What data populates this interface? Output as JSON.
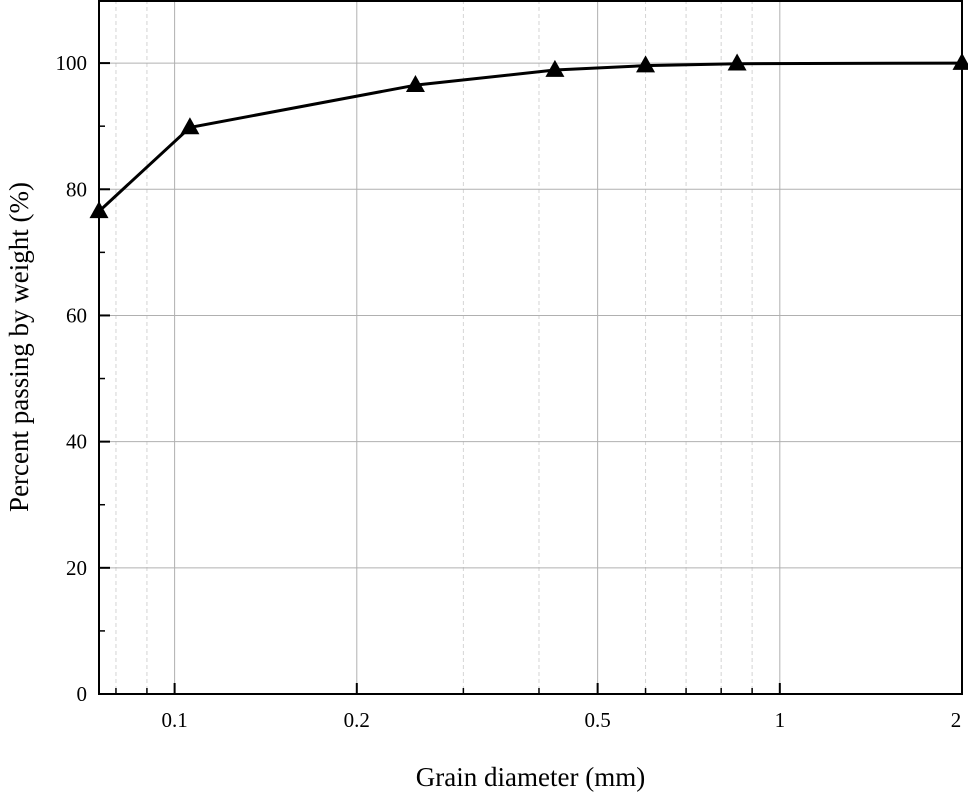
{
  "chart_data": {
    "type": "line",
    "title": "",
    "xlabel": "Grain diameter (mm)",
    "ylabel": "Percent passing by weight (%)",
    "x_scale": "log",
    "xlim": [
      0.075,
      2
    ],
    "ylim": [
      0,
      110
    ],
    "x_ticks": [
      0.1,
      0.2,
      0.5,
      1,
      2
    ],
    "x_tick_labels": [
      "0.1",
      "0.2",
      "0.5",
      "1",
      "2"
    ],
    "y_ticks": [
      0,
      20,
      40,
      60,
      80,
      100
    ],
    "y_tick_labels": [
      "0",
      "20",
      "40",
      "60",
      "80",
      "100"
    ],
    "grid": true,
    "marker": "triangle",
    "series": [
      {
        "x": [
          0.075,
          0.106,
          0.25,
          0.425,
          0.6,
          0.85,
          2
        ],
        "y": [
          76.5,
          89.8,
          96.5,
          98.9,
          99.6,
          99.9,
          100
        ]
      }
    ],
    "colors": {
      "line": "#000000",
      "marker": "#000000",
      "major_grid": "#b0b0b0",
      "minor_grid": "#d4d4d4"
    }
  }
}
